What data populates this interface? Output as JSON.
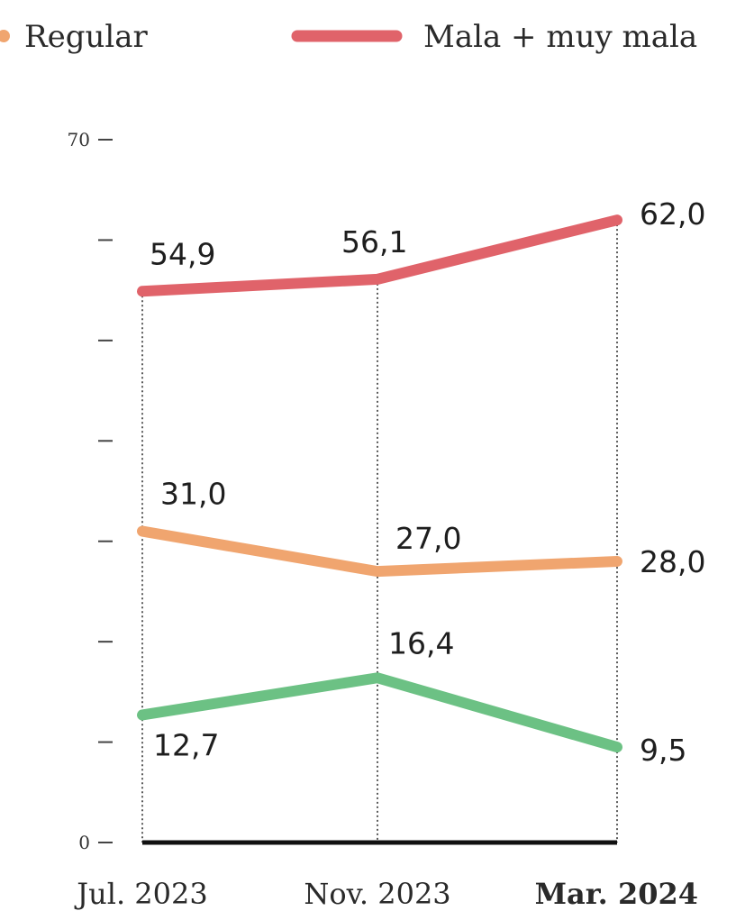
{
  "chart_data": {
    "type": "line",
    "categories": [
      "Jul. 2023",
      "Nov. 2023",
      "Mar. 2024"
    ],
    "highlight_category": "Mar. 2024",
    "ylim": [
      0,
      70
    ],
    "y_tick_count": 8,
    "y_labeled_ticks": [
      "0",
      "70"
    ],
    "grid": false,
    "vertical_dotted_guides": true,
    "legend": {
      "placement": "top",
      "entries": [
        {
          "name": "Regular",
          "color": "#f0a56f"
        },
        {
          "name": "Mala + muy mala",
          "color": "#e0636a"
        }
      ]
    },
    "series": [
      {
        "name": "Mala + muy mala",
        "color": "#e0636a",
        "values": [
          54.9,
          56.1,
          62.0
        ],
        "labels": [
          "54,9",
          "56,1",
          "62,0"
        ]
      },
      {
        "name": "Regular",
        "color": "#f0a56f",
        "values": [
          31.0,
          27.0,
          28.0
        ],
        "labels": [
          "31,0",
          "27,0",
          "28,0"
        ]
      },
      {
        "color": "#6cc184",
        "values": [
          12.7,
          16.4,
          9.5
        ],
        "labels": [
          "12,7",
          "16,4",
          "9,5"
        ]
      }
    ]
  }
}
